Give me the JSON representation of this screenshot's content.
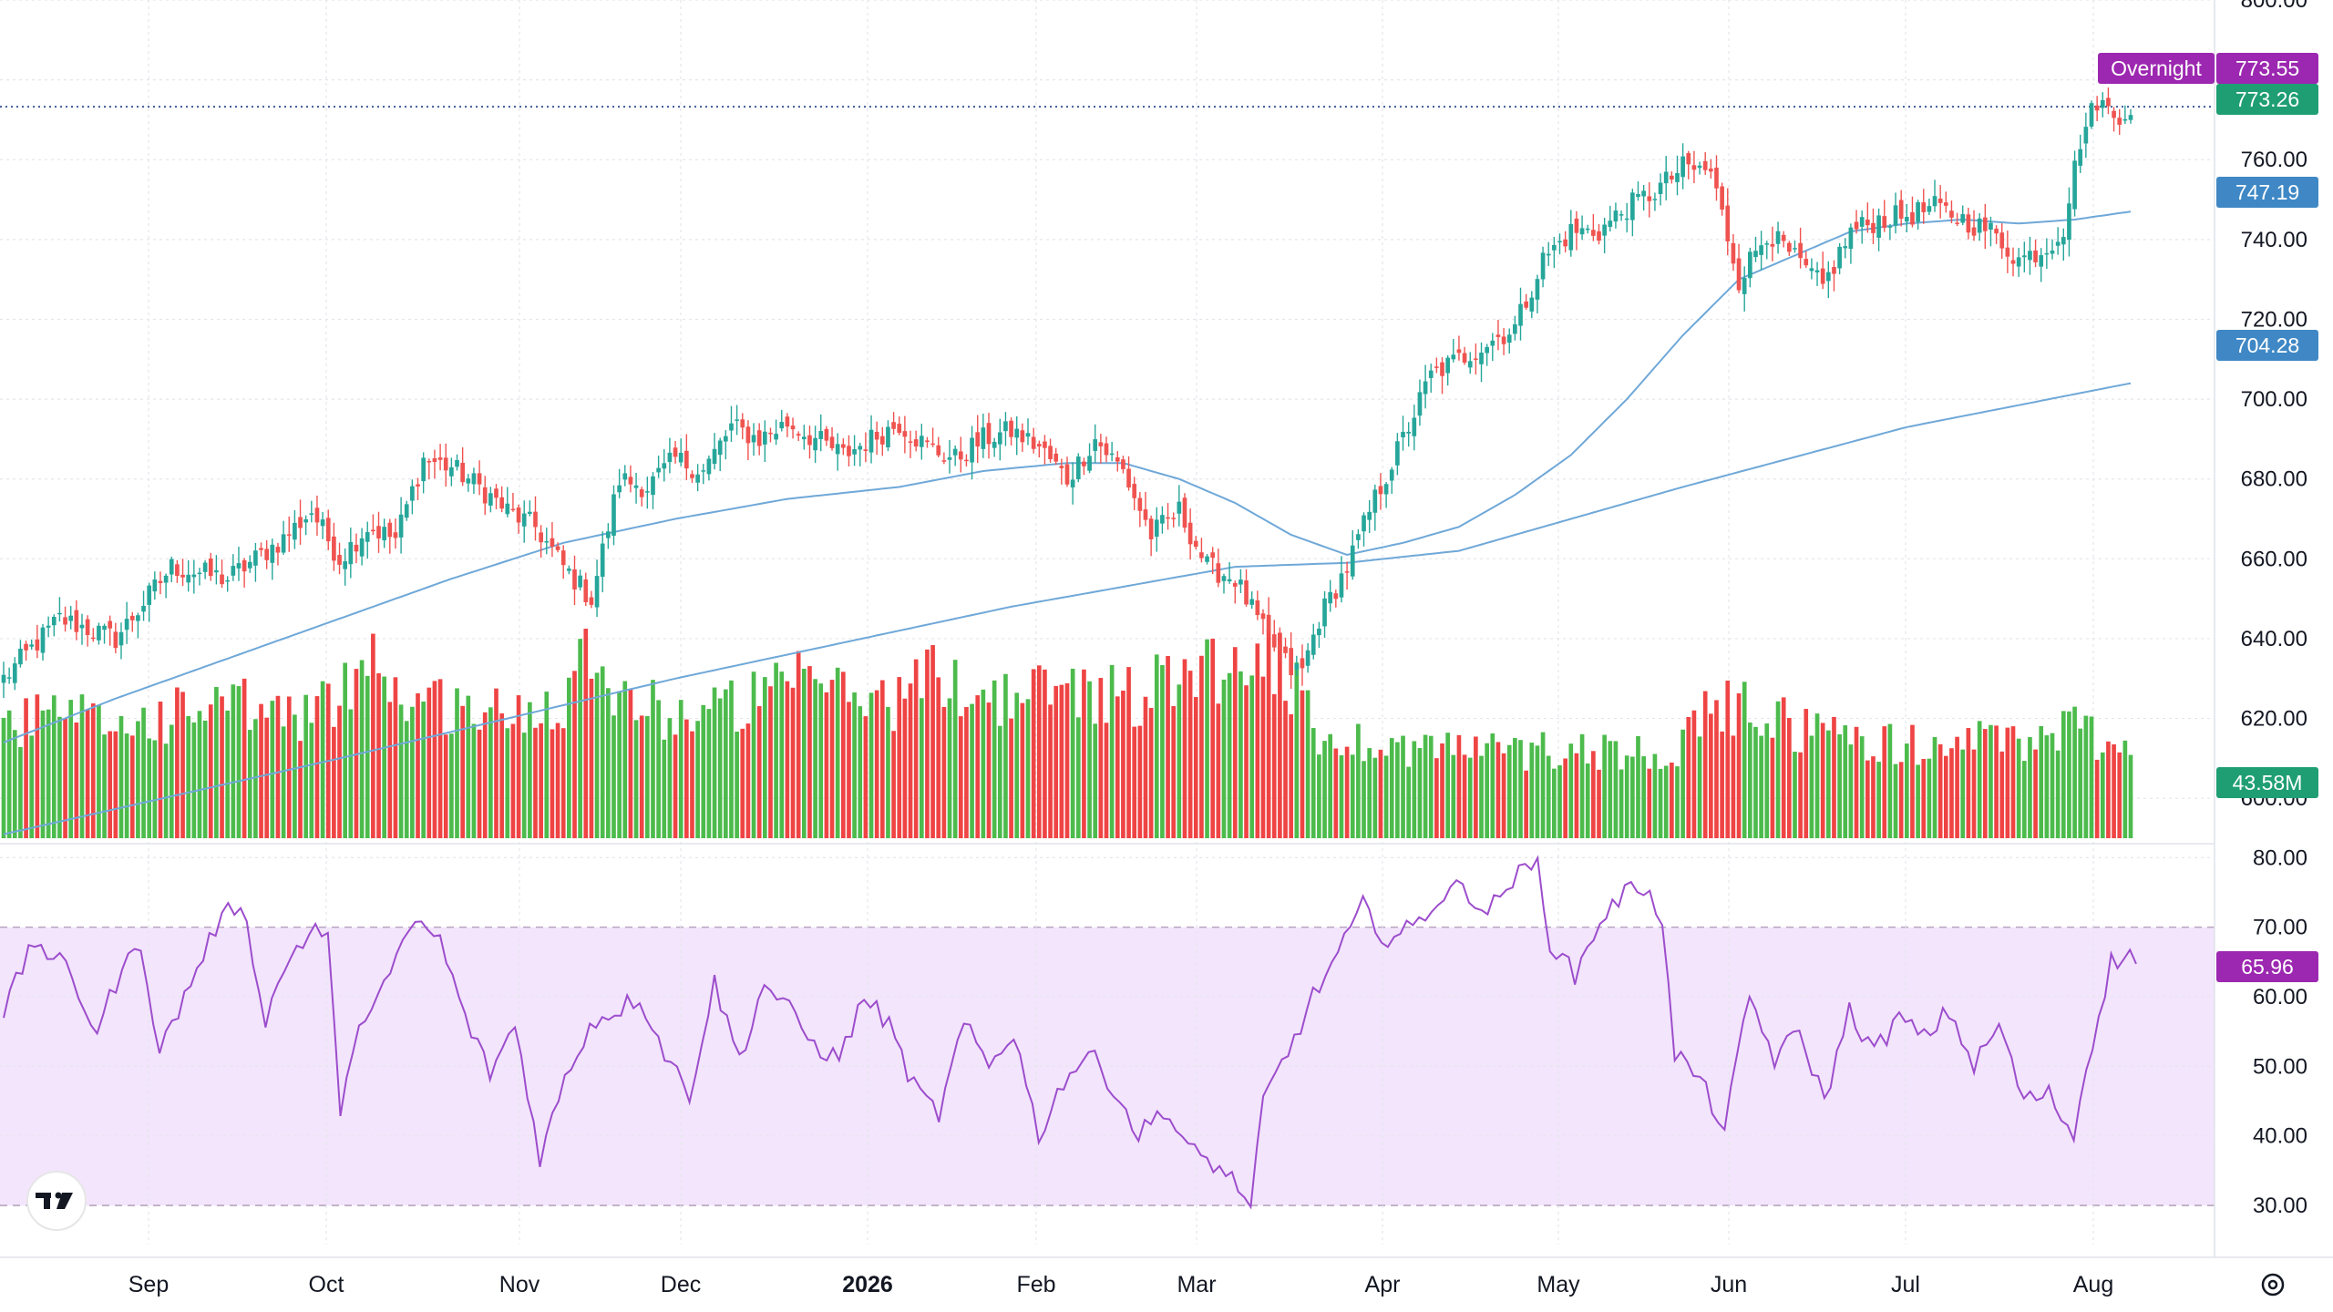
{
  "chart_data": {
    "type": "candlestick",
    "price_axis": {
      "ticks": [
        "800.00",
        "760.00",
        "740.00",
        "720.00",
        "700.00",
        "680.00",
        "660.00",
        "640.00",
        "620.00",
        "600.00"
      ],
      "ylim": [
        590,
        800
      ]
    },
    "rsi_axis": {
      "ticks": [
        "80.00",
        "70.00",
        "60.00",
        "50.00",
        "40.00",
        "30.00"
      ],
      "ylim": [
        27,
        82
      ],
      "band": [
        30,
        70
      ]
    },
    "time_axis": {
      "labels": [
        "Sep",
        "Oct",
        "Nov",
        "Dec",
        "2026",
        "Feb",
        "Mar",
        "Apr",
        "May",
        "Jun",
        "Jul",
        "Aug"
      ]
    },
    "last_price_line": 773.26,
    "tags": {
      "overnight_label": "Overnight",
      "overnight_price": "773.55",
      "last_price": "773.26",
      "ma50": "747.19",
      "ma200": "704.28",
      "volume": "43.58M",
      "rsi": "65.96"
    },
    "colors": {
      "up": "#26a69a",
      "down": "#ef5350",
      "vol_up": "#4cbb4c",
      "vol_down": "#ef4444",
      "ma": "#6fa8d8",
      "rsi": "#9c4dcc",
      "rsi_band": "#f3e5fc",
      "overnight": "#9c27b0",
      "last": "#1f9e74",
      "ma_tag": "#3f88c5"
    },
    "close_anchors": [
      [
        0,
        630
      ],
      [
        10,
        645
      ],
      [
        20,
        640
      ],
      [
        30,
        658
      ],
      [
        40,
        655
      ],
      [
        50,
        665
      ],
      [
        55,
        672
      ],
      [
        60,
        660
      ],
      [
        65,
        668
      ],
      [
        70,
        665
      ],
      [
        75,
        685
      ],
      [
        80,
        683
      ],
      [
        85,
        678
      ],
      [
        90,
        672
      ],
      [
        95,
        668
      ],
      [
        100,
        658
      ],
      [
        105,
        650
      ],
      [
        110,
        680
      ],
      [
        115,
        678
      ],
      [
        120,
        685
      ],
      [
        125,
        682
      ],
      [
        130,
        693
      ],
      [
        135,
        690
      ],
      [
        140,
        694
      ],
      [
        145,
        690
      ],
      [
        150,
        686
      ],
      [
        155,
        690
      ],
      [
        160,
        694
      ],
      [
        165,
        688
      ],
      [
        170,
        685
      ],
      [
        175,
        690
      ],
      [
        180,
        692
      ],
      [
        185,
        688
      ],
      [
        190,
        680
      ],
      [
        195,
        690
      ],
      [
        200,
        682
      ],
      [
        205,
        666
      ],
      [
        210,
        672
      ],
      [
        215,
        658
      ],
      [
        220,
        655
      ],
      [
        225,
        642
      ],
      [
        230,
        632
      ],
      [
        232,
        632
      ],
      [
        235,
        645
      ],
      [
        240,
        658
      ],
      [
        245,
        675
      ],
      [
        250,
        690
      ],
      [
        255,
        706
      ],
      [
        260,
        710
      ],
      [
        265,
        714
      ],
      [
        270,
        718
      ],
      [
        275,
        735
      ],
      [
        280,
        742
      ],
      [
        285,
        742
      ],
      [
        290,
        748
      ],
      [
        295,
        752
      ],
      [
        300,
        758
      ],
      [
        305,
        757
      ],
      [
        310,
        730
      ],
      [
        315,
        742
      ],
      [
        320,
        735
      ],
      [
        325,
        728
      ],
      [
        330,
        742
      ],
      [
        335,
        745
      ],
      [
        340,
        746
      ],
      [
        345,
        748
      ],
      [
        350,
        745
      ],
      [
        355,
        742
      ],
      [
        360,
        735
      ],
      [
        365,
        738
      ],
      [
        368,
        743
      ],
      [
        371,
        765
      ],
      [
        374,
        775
      ],
      [
        377,
        771
      ],
      [
        380,
        773
      ]
    ],
    "ma50_anchors": [
      [
        0,
        614
      ],
      [
        20,
        625
      ],
      [
        40,
        635
      ],
      [
        60,
        645
      ],
      [
        80,
        655
      ],
      [
        100,
        664
      ],
      [
        120,
        670
      ],
      [
        140,
        675
      ],
      [
        160,
        678
      ],
      [
        175,
        682
      ],
      [
        190,
        684
      ],
      [
        200,
        684
      ],
      [
        210,
        680
      ],
      [
        220,
        674
      ],
      [
        230,
        666
      ],
      [
        240,
        661
      ],
      [
        250,
        664
      ],
      [
        260,
        668
      ],
      [
        270,
        676
      ],
      [
        280,
        686
      ],
      [
        290,
        700
      ],
      [
        300,
        716
      ],
      [
        310,
        730
      ],
      [
        320,
        736
      ],
      [
        330,
        742
      ],
      [
        340,
        744
      ],
      [
        350,
        745
      ],
      [
        360,
        744
      ],
      [
        370,
        745
      ],
      [
        380,
        747
      ]
    ],
    "ma200_anchors": [
      [
        0,
        591
      ],
      [
        60,
        610
      ],
      [
        120,
        630
      ],
      [
        180,
        648
      ],
      [
        220,
        658
      ],
      [
        240,
        659
      ],
      [
        260,
        662
      ],
      [
        300,
        678
      ],
      [
        340,
        693
      ],
      [
        380,
        704
      ]
    ],
    "volume_anchors_M": [
      [
        0,
        55
      ],
      [
        10,
        60
      ],
      [
        20,
        55
      ],
      [
        30,
        60
      ],
      [
        40,
        65
      ],
      [
        50,
        60
      ],
      [
        60,
        65
      ],
      [
        65,
        100
      ],
      [
        70,
        70
      ],
      [
        80,
        65
      ],
      [
        90,
        60
      ],
      [
        100,
        70
      ],
      [
        105,
        100
      ],
      [
        110,
        70
      ],
      [
        120,
        60
      ],
      [
        130,
        65
      ],
      [
        140,
        72
      ],
      [
        145,
        80
      ],
      [
        150,
        70
      ],
      [
        160,
        68
      ],
      [
        165,
        80
      ],
      [
        170,
        75
      ],
      [
        180,
        68
      ],
      [
        190,
        75
      ],
      [
        200,
        70
      ],
      [
        205,
        72
      ],
      [
        210,
        85
      ],
      [
        215,
        88
      ],
      [
        220,
        80
      ],
      [
        225,
        100
      ],
      [
        230,
        75
      ],
      [
        235,
        50
      ],
      [
        240,
        48
      ],
      [
        250,
        45
      ],
      [
        260,
        45
      ],
      [
        270,
        42
      ],
      [
        280,
        45
      ],
      [
        290,
        42
      ],
      [
        300,
        45
      ],
      [
        305,
        62
      ],
      [
        310,
        65
      ],
      [
        320,
        55
      ],
      [
        330,
        50
      ],
      [
        340,
        45
      ],
      [
        350,
        48
      ],
      [
        360,
        47
      ],
      [
        370,
        55
      ],
      [
        375,
        48
      ],
      [
        380,
        44
      ]
    ],
    "rsi_anchors": [
      [
        0,
        58
      ],
      [
        5,
        68
      ],
      [
        10,
        64
      ],
      [
        15,
        55
      ],
      [
        18,
        62
      ],
      [
        22,
        68
      ],
      [
        25,
        52
      ],
      [
        30,
        62
      ],
      [
        34,
        70
      ],
      [
        38,
        74
      ],
      [
        42,
        57
      ],
      [
        46,
        66
      ],
      [
        50,
        70
      ],
      [
        52,
        68
      ],
      [
        54,
        44
      ],
      [
        58,
        58
      ],
      [
        62,
        63
      ],
      [
        66,
        71
      ],
      [
        70,
        68
      ],
      [
        74,
        57
      ],
      [
        78,
        49
      ],
      [
        82,
        56
      ],
      [
        86,
        37
      ],
      [
        90,
        48
      ],
      [
        94,
        56
      ],
      [
        98,
        58
      ],
      [
        102,
        60
      ],
      [
        106,
        52
      ],
      [
        110,
        46
      ],
      [
        114,
        62
      ],
      [
        118,
        51
      ],
      [
        122,
        62
      ],
      [
        126,
        58
      ],
      [
        130,
        53
      ],
      [
        134,
        51
      ],
      [
        138,
        60
      ],
      [
        142,
        56
      ],
      [
        146,
        47
      ],
      [
        150,
        43
      ],
      [
        154,
        56
      ],
      [
        158,
        50
      ],
      [
        162,
        55
      ],
      [
        166,
        40
      ],
      [
        170,
        48
      ],
      [
        174,
        52
      ],
      [
        178,
        47
      ],
      [
        182,
        40
      ],
      [
        186,
        44
      ],
      [
        190,
        38
      ],
      [
        194,
        36
      ],
      [
        198,
        33
      ],
      [
        200,
        29
      ],
      [
        202,
        45
      ],
      [
        206,
        52
      ],
      [
        210,
        60
      ],
      [
        214,
        66
      ],
      [
        218,
        73
      ],
      [
        222,
        68
      ],
      [
        226,
        70
      ],
      [
        230,
        74
      ],
      [
        234,
        76
      ],
      [
        238,
        72
      ],
      [
        242,
        77
      ],
      [
        246,
        79
      ],
      [
        248,
        68
      ],
      [
        252,
        63
      ],
      [
        256,
        71
      ],
      [
        260,
        75
      ],
      [
        264,
        76
      ],
      [
        266,
        70
      ],
      [
        268,
        52
      ],
      [
        272,
        48
      ],
      [
        276,
        41
      ],
      [
        280,
        60
      ],
      [
        284,
        51
      ],
      [
        288,
        55
      ],
      [
        292,
        45
      ],
      [
        296,
        58
      ],
      [
        300,
        52
      ],
      [
        304,
        57
      ],
      [
        308,
        54
      ],
      [
        312,
        58
      ],
      [
        316,
        50
      ],
      [
        320,
        56
      ],
      [
        324,
        45
      ],
      [
        328,
        46
      ],
      [
        332,
        40
      ],
      [
        334,
        50
      ],
      [
        338,
        65
      ],
      [
        342,
        66
      ]
    ]
  }
}
